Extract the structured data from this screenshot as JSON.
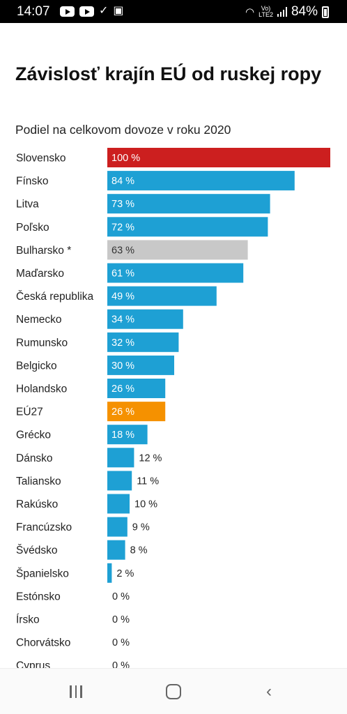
{
  "status_bar": {
    "time": "14:07",
    "battery": "84%",
    "network": "LTE2"
  },
  "chart_data": {
    "type": "bar",
    "orientation": "horizontal",
    "title": "Závislosť krajín EÚ od ruskej ropy",
    "subtitle": "Podiel na celkovom dovoze v roku 2020",
    "xlim": [
      0,
      100
    ],
    "unit": "%",
    "categories": [
      "Slovensko",
      "Fínsko",
      "Litva",
      "Poľsko",
      "Bulharsko *",
      "Maďarsko",
      "Česká republika",
      "Nemecko",
      "Rumunsko",
      "Belgicko",
      "Holandsko",
      "EÚ27",
      "Grécko",
      "Dánsko",
      "Taliansko",
      "Rakúsko",
      "Francúzsko",
      "Švédsko",
      "Španielsko",
      "Estónsko",
      "Írsko",
      "Chorvátsko",
      "Cyprus"
    ],
    "values": [
      100,
      84,
      73,
      72,
      63,
      61,
      49,
      34,
      32,
      30,
      26,
      26,
      18,
      12,
      11,
      10,
      9,
      8,
      2,
      0,
      0,
      0,
      0
    ],
    "value_labels": [
      "100 %",
      "84 %",
      "73 %",
      "72 %",
      "63 %",
      "61 %",
      "49 %",
      "34 %",
      "32 %",
      "30 %",
      "26 %",
      "26 %",
      "18 %",
      "12 %",
      "11 %",
      "10 %",
      "9 %",
      "8 %",
      "2 %",
      "0 %",
      "0 %",
      "0 %",
      "0 %"
    ],
    "colors": {
      "default": "#1ea0d4",
      "Slovensko": "#cc1f1f",
      "Bulharsko *": "#c8c8c8",
      "EÚ27": "#f59100"
    },
    "grid": false,
    "legend": "none"
  },
  "nav_bar": {
    "recents_icon": "recents-icon",
    "home_icon": "home-icon",
    "back_icon": "back-icon",
    "back_glyph": "‹"
  }
}
